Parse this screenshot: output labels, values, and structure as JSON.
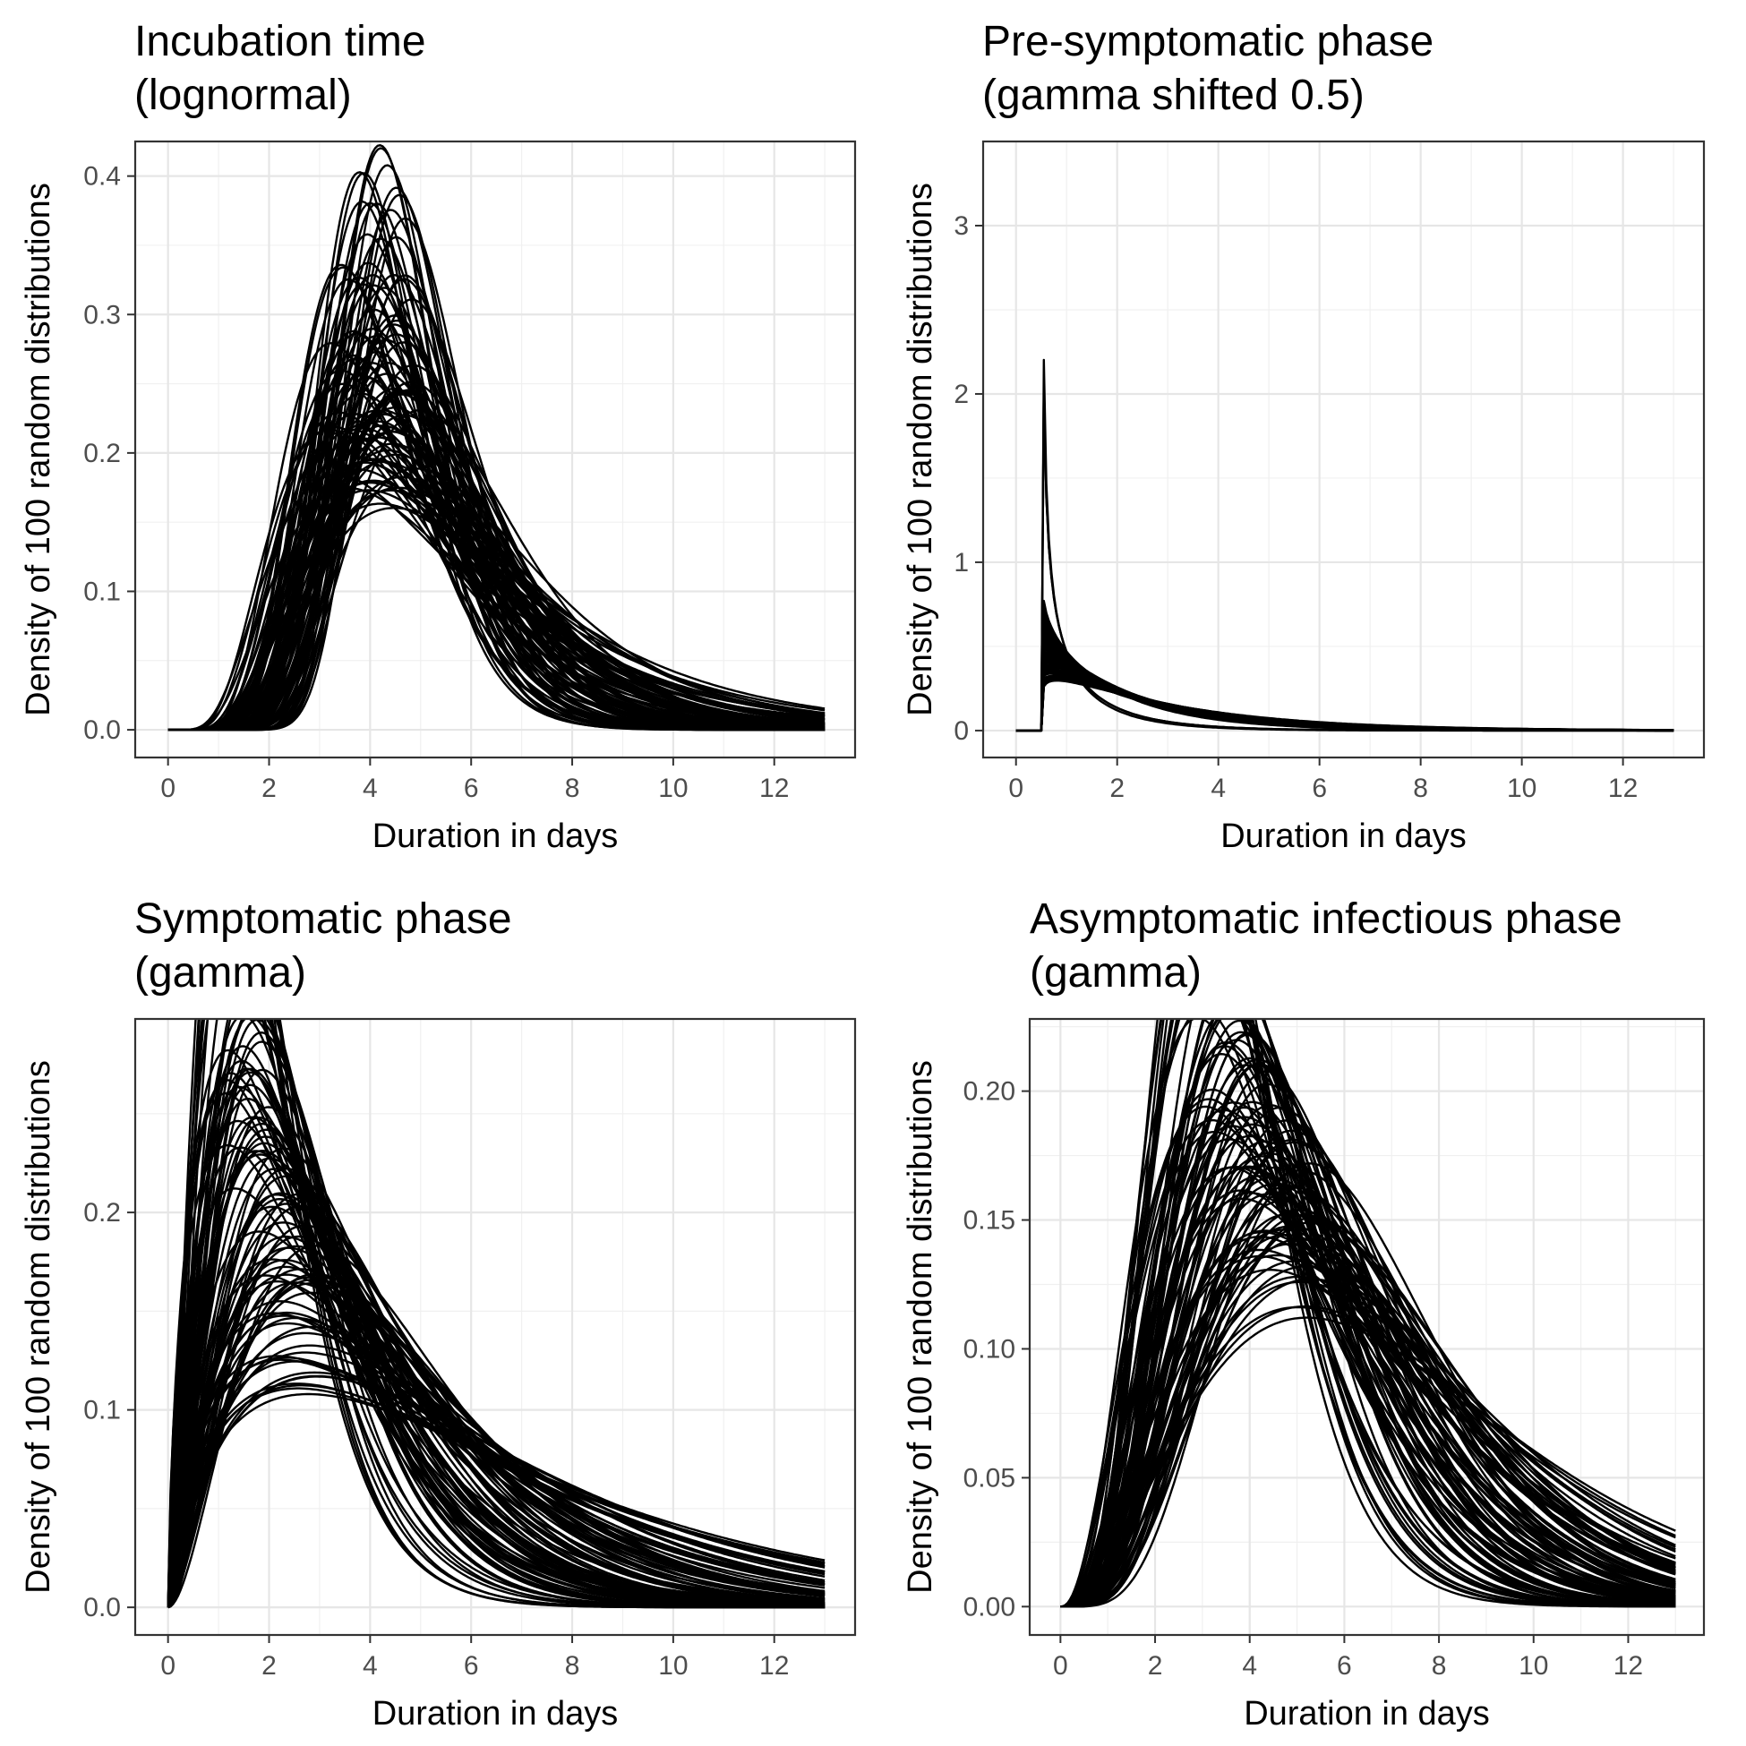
{
  "chart_data": [
    {
      "type": "line",
      "title": "Incubation time",
      "subtitle": "(lognormal)",
      "xlabel": "Duration in days",
      "ylabel": "Density of 100 random distributions",
      "xlim": [
        -0.65,
        13.6
      ],
      "ylim": [
        -0.02,
        0.425
      ],
      "xticks": [
        0,
        2,
        4,
        6,
        8,
        10,
        12
      ],
      "yticks": [
        0.0,
        0.1,
        0.2,
        0.3,
        0.4
      ],
      "ytick_labels": [
        "0.0",
        "0.1",
        "0.2",
        "0.3",
        "0.4"
      ],
      "grid": true,
      "x_range": [
        0,
        13
      ],
      "n_distributions": 100,
      "distribution": "lognormal",
      "line_color": "#000000"
    },
    {
      "type": "line",
      "title": "Pre-symptomatic phase",
      "subtitle": "(gamma shifted 0.5)",
      "xlabel": "Duration in days",
      "ylabel": "Density of 100 random distributions",
      "xlim": [
        -0.65,
        13.6
      ],
      "ylim": [
        -0.16,
        3.5
      ],
      "xticks": [
        0,
        2,
        4,
        6,
        8,
        10,
        12
      ],
      "yticks": [
        0,
        1,
        2,
        3
      ],
      "ytick_labels": [
        "0",
        "1",
        "2",
        "3"
      ],
      "grid": true,
      "x_range": [
        0,
        13
      ],
      "n_distributions": 100,
      "distribution": "gamma",
      "shift": 0.5,
      "line_color": "#000000"
    },
    {
      "type": "line",
      "title": "Symptomatic phase",
      "subtitle": "(gamma)",
      "xlabel": "Duration in days",
      "ylabel": "Density of 100 random distributions",
      "xlim": [
        -0.65,
        13.6
      ],
      "ylim": [
        -0.014,
        0.298
      ],
      "xticks": [
        0,
        2,
        4,
        6,
        8,
        10,
        12
      ],
      "yticks": [
        0.0,
        0.1,
        0.2
      ],
      "ytick_labels": [
        "0.0",
        "0.1",
        "0.2"
      ],
      "grid": true,
      "x_range": [
        0,
        13
      ],
      "n_distributions": 100,
      "distribution": "gamma",
      "line_color": "#000000"
    },
    {
      "type": "line",
      "title": "Asymptomatic infectious phase",
      "subtitle": "(gamma)",
      "xlabel": "Duration in days",
      "ylabel": "Density of 100 random distributions",
      "xlim": [
        -0.65,
        13.6
      ],
      "ylim": [
        -0.011,
        0.228
      ],
      "xticks": [
        0,
        2,
        4,
        6,
        8,
        10,
        12
      ],
      "yticks": [
        0.0,
        0.05,
        0.1,
        0.15,
        0.2
      ],
      "ytick_labels": [
        "0.00",
        "0.05",
        "0.10",
        "0.15",
        "0.20"
      ],
      "grid": true,
      "x_range": [
        0,
        13
      ],
      "n_distributions": 100,
      "distribution": "gamma",
      "line_color": "#000000"
    }
  ]
}
